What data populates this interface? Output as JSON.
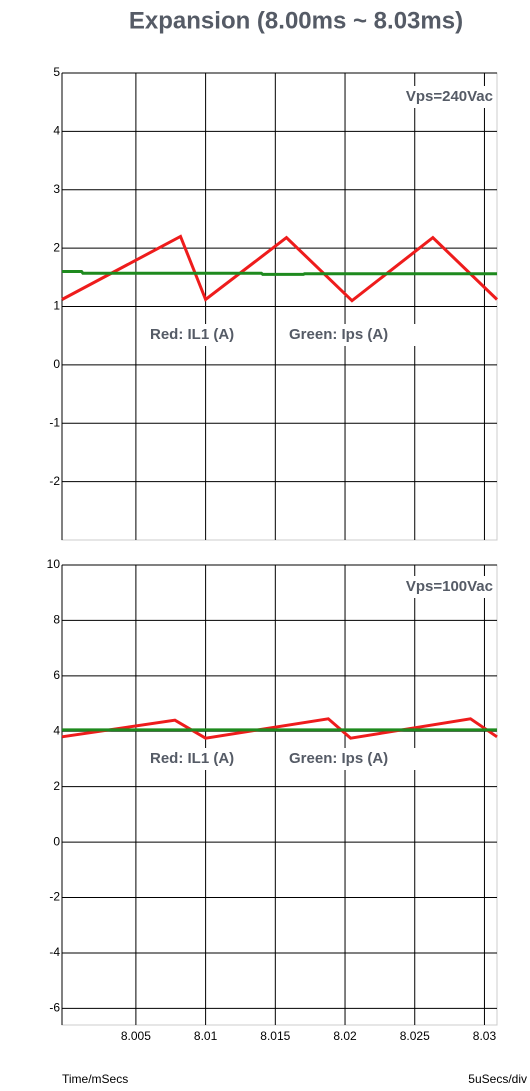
{
  "title": "Expansion (8.00ms ~ 8.03ms)",
  "footer": {
    "left": "Time/mSecs",
    "right": "5uSecs/div"
  },
  "chart_data": [
    {
      "type": "line",
      "xlim": [
        7.9997,
        8.0309
      ],
      "ylim": [
        -3,
        5
      ],
      "yticks": [
        5,
        4,
        3,
        2,
        1,
        0,
        -1,
        -2
      ],
      "xticks": [
        8.005,
        8.01,
        8.015,
        8.02,
        8.025,
        8.03
      ],
      "xtick_labels": false,
      "grid": true,
      "annotations": [
        "Vps=240Vac",
        "Red: IL1 (A)",
        "Green: Ips (A)"
      ],
      "series": [
        {
          "name": "IL1",
          "color": "#ee1c1c",
          "x": [
            7.9997,
            8.0082,
            8.01,
            8.0158,
            8.0205,
            8.0263,
            8.0309
          ],
          "values": [
            1.12,
            2.2,
            1.12,
            2.18,
            1.1,
            2.18,
            1.12
          ]
        },
        {
          "name": "Ips",
          "color": "#1e8a1e",
          "x": [
            7.9997,
            8.0011,
            8.0012,
            8.014,
            8.0141,
            8.017,
            8.0171,
            8.0309
          ],
          "values": [
            1.6,
            1.6,
            1.57,
            1.57,
            1.55,
            1.55,
            1.56,
            1.56
          ]
        }
      ]
    },
    {
      "type": "line",
      "xlim": [
        7.9997,
        8.0309
      ],
      "ylim": [
        -6.6,
        10
      ],
      "yticks": [
        10,
        8,
        6,
        4,
        2,
        0,
        -2,
        -4,
        -6
      ],
      "xticks": [
        8.005,
        8.01,
        8.015,
        8.02,
        8.025,
        8.03
      ],
      "xtick_labels": true,
      "grid": true,
      "annotations": [
        "Vps=100Vac",
        "Red: IL1 (A)",
        "Green: Ips (A)"
      ],
      "series": [
        {
          "name": "IL1",
          "color": "#ee1c1c",
          "x": [
            7.9997,
            8.0078,
            8.01,
            8.0188,
            8.0204,
            8.029,
            8.0309
          ],
          "values": [
            3.8,
            4.4,
            3.75,
            4.45,
            3.75,
            4.45,
            3.8
          ]
        },
        {
          "name": "Ips",
          "color": "#1e8a1e",
          "x": [
            7.9997,
            8.0309
          ],
          "values": [
            4.05,
            4.05
          ]
        }
      ]
    }
  ]
}
